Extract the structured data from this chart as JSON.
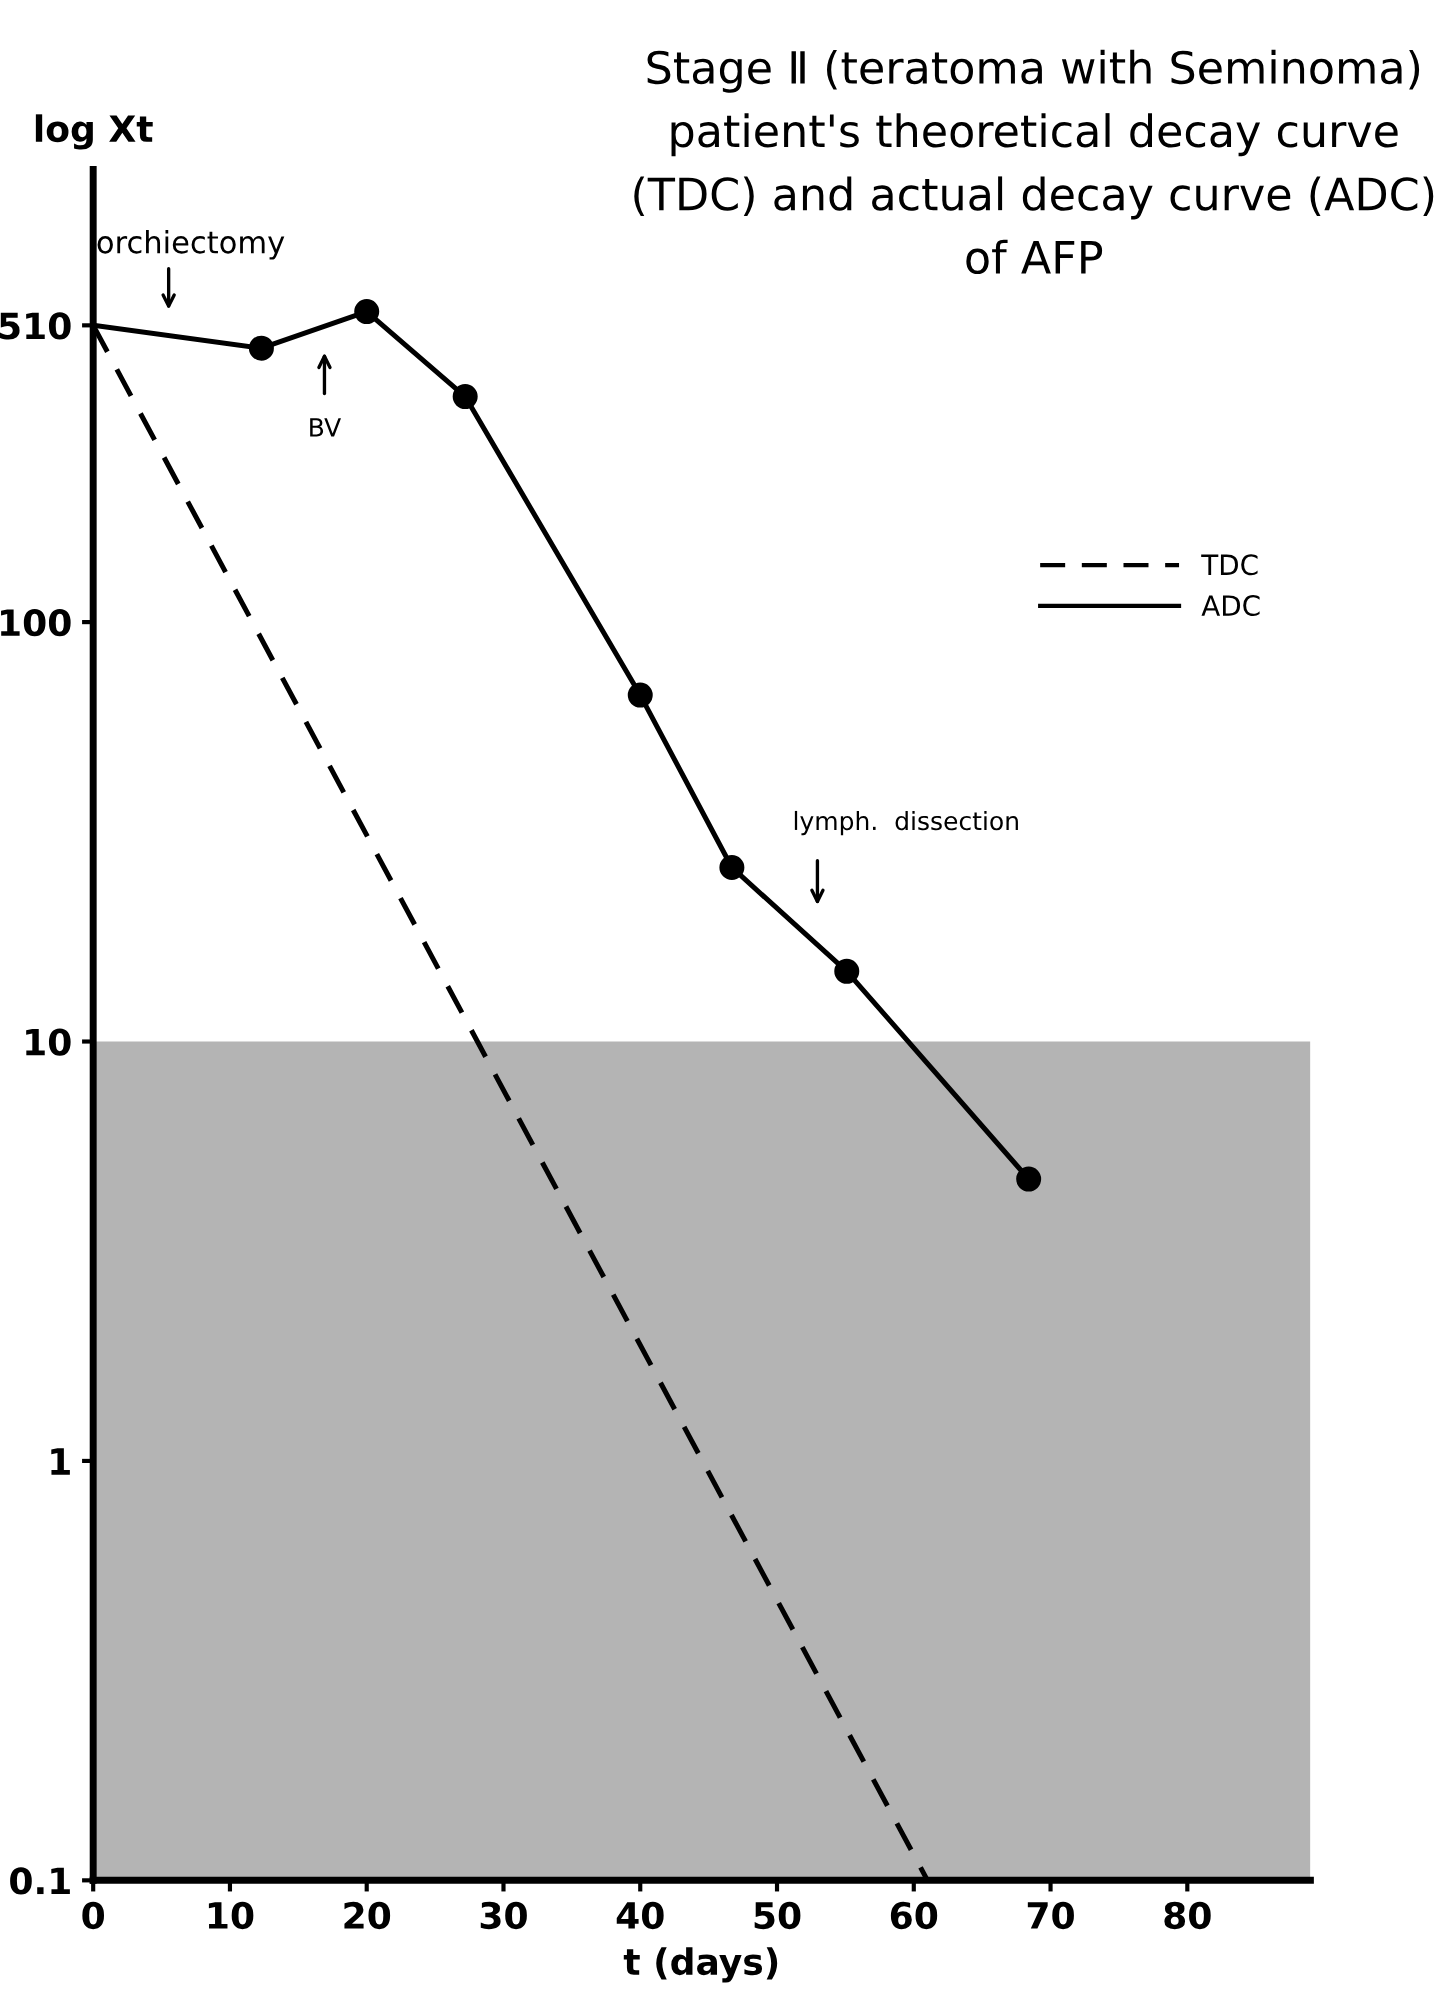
{
  "chart_data": {
    "type": "line",
    "title": "Stage Ⅱ (teratoma with Seminoma) patient's theoretical decay curve (TDC) and actual decay curve (ADC) of AFP",
    "xlabel": "t (days)",
    "ylabel": "log Xt",
    "series": [
      {
        "name": "TDC",
        "color": "#000000",
        "line_style": "dashed",
        "marker": "none",
        "x": [
          0,
          61
        ],
        "values": [
          510,
          0.1
        ]
      },
      {
        "name": "ADC",
        "color": "#000000",
        "line_style": "solid",
        "marker": "circle",
        "x": [
          0,
          12.3,
          20,
          27.2,
          40,
          46.7,
          55.1,
          68.4
        ],
        "values": [
          510,
          450,
          550,
          345,
          67,
          26,
          14.7,
          4.7
        ]
      }
    ],
    "log": "y",
    "xlim": [
      0,
      89
    ],
    "ylim": [
      0.1,
      1200
    ],
    "xticks": [
      0,
      10,
      20,
      30,
      40,
      50,
      60,
      70,
      80
    ],
    "yticks": [
      0.1,
      1,
      10,
      100,
      510
    ],
    "bands": [
      {
        "axis": "y",
        "from": 0.1,
        "to": 10,
        "color": "#b4b4b4"
      }
    ],
    "annotations": [
      "orchiectomy",
      "BV",
      "lymph.  dissection"
    ],
    "legend": "top right",
    "grid": false
  }
}
